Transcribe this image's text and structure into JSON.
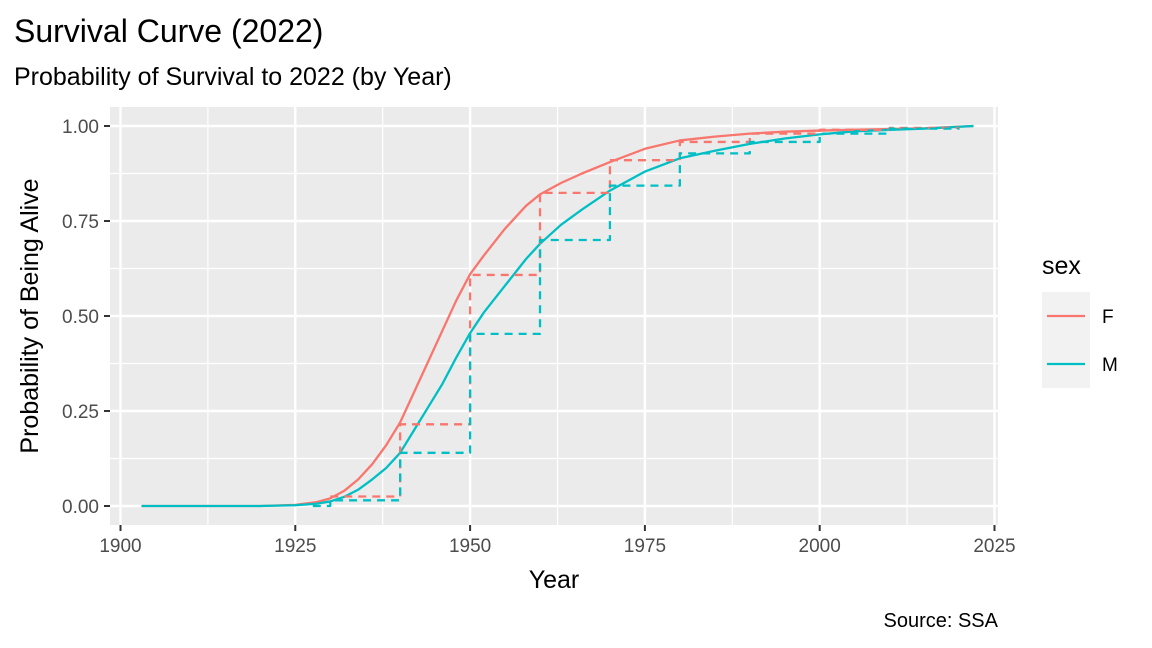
{
  "chart_data": {
    "type": "line",
    "title": "Survival Curve (2022)",
    "subtitle": "Probability of Survival to 2022 (by Year)",
    "xlabel": "Year",
    "ylabel": "Probability of Being Alive",
    "caption": "Source: SSA",
    "xlim": [
      1898.5,
      2025.5
    ],
    "ylim": [
      -0.05,
      1.05
    ],
    "x_ticks": [
      1900,
      1925,
      1950,
      1975,
      2000,
      2025
    ],
    "y_ticks": [
      0.0,
      0.25,
      0.5,
      0.75,
      1.0
    ],
    "x_tick_labels": [
      "1900",
      "1925",
      "1950",
      "1975",
      "2000",
      "2025"
    ],
    "y_tick_labels": [
      "0.00",
      "0.25",
      "0.50",
      "0.75",
      "1.00"
    ],
    "grid": true,
    "legend": {
      "title": "sex",
      "position": "right",
      "entries": [
        {
          "label": "F",
          "color": "#F8766D"
        },
        {
          "label": "M",
          "color": "#00BFC4"
        }
      ]
    },
    "series": [
      {
        "name": "F",
        "color": "#F8766D",
        "style": "solid",
        "x": [
          1903,
          1910,
          1920,
          1925,
          1928,
          1930,
          1932,
          1934,
          1936,
          1938,
          1940,
          1942,
          1944,
          1946,
          1948,
          1950,
          1952,
          1955,
          1958,
          1960,
          1963,
          1966,
          1970,
          1975,
          1980,
          1985,
          1990,
          1995,
          2000,
          2005,
          2010,
          2015,
          2022
        ],
        "y": [
          0.0,
          0.0,
          0.0,
          0.003,
          0.01,
          0.02,
          0.04,
          0.07,
          0.11,
          0.16,
          0.22,
          0.3,
          0.38,
          0.46,
          0.54,
          0.61,
          0.66,
          0.73,
          0.79,
          0.82,
          0.85,
          0.875,
          0.905,
          0.94,
          0.962,
          0.972,
          0.98,
          0.985,
          0.988,
          0.99,
          0.992,
          0.994,
          1.0
        ]
      },
      {
        "name": "M",
        "color": "#00BFC4",
        "style": "solid",
        "x": [
          1903,
          1910,
          1920,
          1925,
          1928,
          1930,
          1932,
          1934,
          1936,
          1938,
          1940,
          1942,
          1944,
          1946,
          1948,
          1950,
          1952,
          1955,
          1958,
          1960,
          1963,
          1966,
          1970,
          1975,
          1980,
          1985,
          1990,
          1995,
          2000,
          2005,
          2010,
          2015,
          2022
        ],
        "y": [
          0.0,
          0.0,
          0.0,
          0.002,
          0.006,
          0.012,
          0.024,
          0.043,
          0.07,
          0.1,
          0.14,
          0.2,
          0.26,
          0.32,
          0.39,
          0.455,
          0.51,
          0.58,
          0.65,
          0.69,
          0.74,
          0.78,
          0.83,
          0.88,
          0.915,
          0.935,
          0.953,
          0.967,
          0.978,
          0.986,
          0.99,
          0.993,
          1.0
        ]
      },
      {
        "name": "F",
        "color": "#F8766D",
        "style": "dashed",
        "x": [
          1930,
          1940,
          1940,
          1950,
          1950,
          1960,
          1960,
          1970,
          1970,
          1980,
          1980,
          1990,
          1990,
          2000,
          2000,
          2010,
          2010,
          2020
        ],
        "y": [
          0.025,
          0.025,
          0.215,
          0.215,
          0.608,
          0.608,
          0.824,
          0.824,
          0.91,
          0.91,
          0.958,
          0.958,
          0.98,
          0.98,
          0.99,
          0.99,
          0.995,
          0.995
        ]
      },
      {
        "name": "M",
        "color": "#00BFC4",
        "style": "dashed",
        "x": [
          1927.5,
          1930,
          1930,
          1940,
          1940,
          1950,
          1950,
          1960,
          1960,
          1970,
          1970,
          1980,
          1980,
          1990,
          1990,
          2000,
          2000,
          2010,
          2010,
          2020
        ],
        "y": [
          0.0,
          0.0,
          0.015,
          0.015,
          0.14,
          0.14,
          0.453,
          0.453,
          0.7,
          0.7,
          0.843,
          0.843,
          0.928,
          0.928,
          0.958,
          0.958,
          0.98,
          0.98,
          0.993,
          0.993
        ]
      }
    ]
  }
}
